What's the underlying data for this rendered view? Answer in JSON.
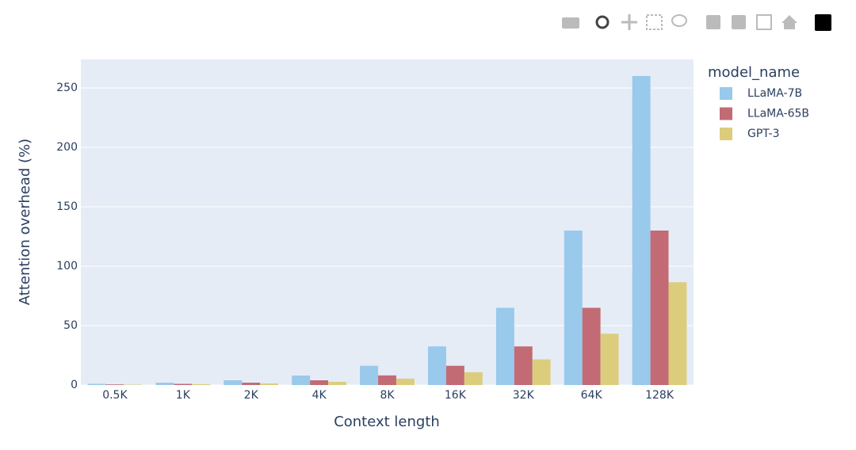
{
  "chart_data": {
    "type": "bar",
    "x_label": "Context length",
    "y_label": "Attention overhead (%)",
    "legend_title": "model_name",
    "categories": [
      "0.5K",
      "1K",
      "2K",
      "4K",
      "8K",
      "16K",
      "32K",
      "64K",
      "128K"
    ],
    "series": [
      {
        "name": "LLaMA-7B",
        "color": "#99c9eb",
        "values": [
          1,
          2,
          4,
          8,
          16.2,
          32.5,
          65,
          130,
          260
        ]
      },
      {
        "name": "LLaMA-65B",
        "color": "#c26b75",
        "values": [
          0.5,
          1,
          2,
          4,
          8.1,
          16.2,
          32.5,
          65,
          130
        ]
      },
      {
        "name": "GPT-3",
        "color": "#dccd7d",
        "values": [
          0.35,
          0.7,
          1.35,
          2.7,
          5.4,
          10.8,
          21.6,
          43.2,
          86.5
        ]
      }
    ],
    "ylim": [
      0,
      274
    ],
    "yticks": [
      0,
      50,
      100,
      150,
      200,
      250
    ],
    "grid": true
  }
}
